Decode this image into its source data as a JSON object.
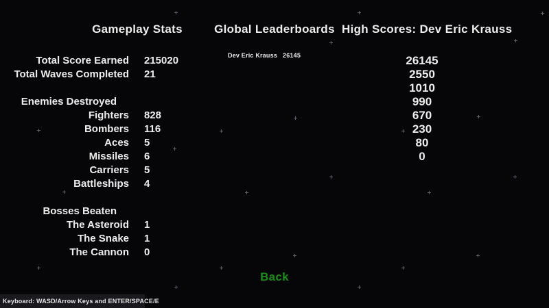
{
  "colors": {
    "background": "#060609",
    "text": "#ededed",
    "accent_green": "#1b8c1b",
    "footer_bg": "#1a1a1e",
    "star": "#60606a"
  },
  "gameplay_stats": {
    "title": "Gameplay Stats",
    "rows": [
      {
        "type": "stat",
        "label": "Total Score Earned",
        "value": "215020"
      },
      {
        "type": "stat",
        "label": "Total Waves Completed",
        "value": "21"
      },
      {
        "type": "spacer"
      },
      {
        "type": "header",
        "label": "Enemies Destroyed"
      },
      {
        "type": "stat",
        "label": "Fighters",
        "value": "828"
      },
      {
        "type": "stat",
        "label": "Bombers",
        "value": "116"
      },
      {
        "type": "stat",
        "label": "Aces",
        "value": "5"
      },
      {
        "type": "stat",
        "label": "Missiles",
        "value": "6"
      },
      {
        "type": "stat",
        "label": "Carriers",
        "value": "5"
      },
      {
        "type": "stat",
        "label": "Battleships",
        "value": "4"
      },
      {
        "type": "spacer"
      },
      {
        "type": "header",
        "label": "Bosses Beaten"
      },
      {
        "type": "stat",
        "label": "The Asteroid",
        "value": "1"
      },
      {
        "type": "stat",
        "label": "The Snake",
        "value": "1"
      },
      {
        "type": "stat",
        "label": "The Cannon",
        "value": "0"
      }
    ]
  },
  "leaderboard": {
    "title": "Global Leaderboards",
    "entries": [
      {
        "name": "Dev Eric Krauss",
        "score": "26145"
      }
    ]
  },
  "high_scores": {
    "title": "High Scores: Dev Eric Krauss",
    "scores": [
      "26145",
      "2550",
      "1010",
      "990",
      "670",
      "230",
      "80",
      "0"
    ]
  },
  "back_button": {
    "label": "Back"
  },
  "footer": {
    "text": "Keyboard: WASD/Arrow Keys and ENTER/SPACE/E"
  }
}
